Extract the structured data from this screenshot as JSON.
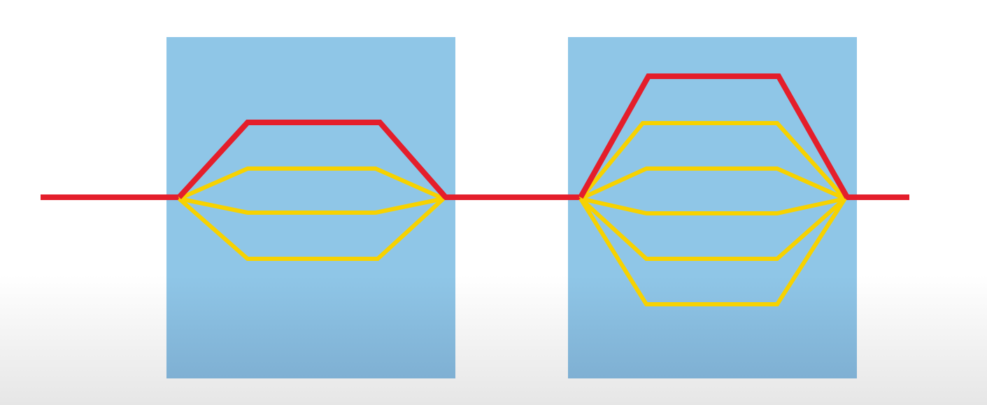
{
  "colors": {
    "background": "#ffffff",
    "background_bottom": "#e6e6e6",
    "panel_top": "#8fc6e7",
    "panel_bottom": "#7fb0d3",
    "highlighted_path": "#e41e2b",
    "alternative_path": "#f7d200"
  },
  "diagram": {
    "panels": [
      {
        "name": "left-panel",
        "alternative_path_count": 3
      },
      {
        "name": "right-panel",
        "alternative_path_count": 5
      }
    ]
  }
}
